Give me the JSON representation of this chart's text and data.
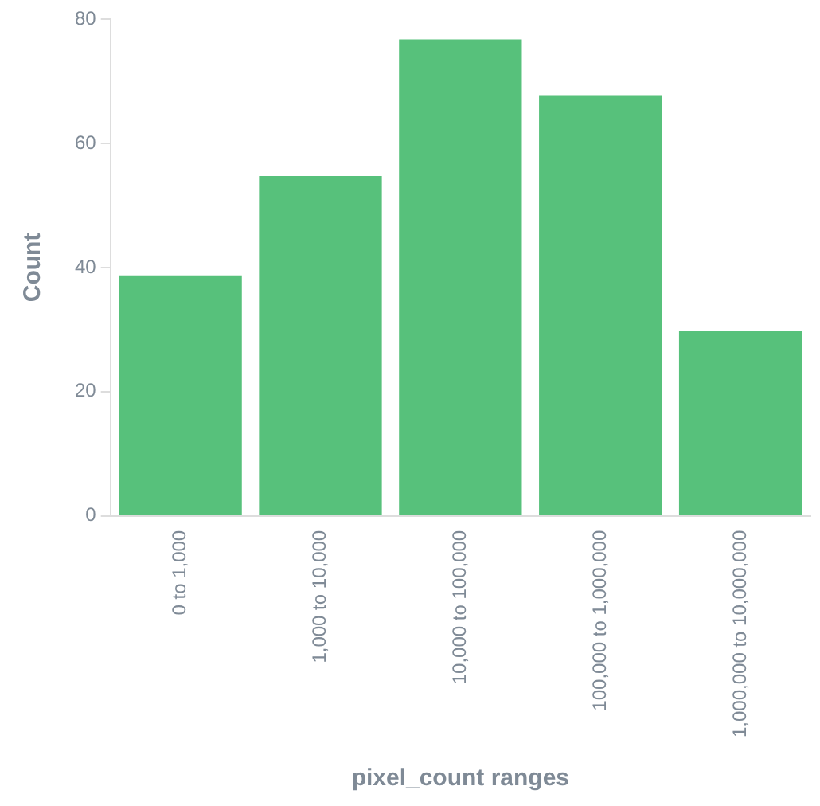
{
  "chart_data": {
    "type": "bar",
    "xlabel": "pixel_count ranges",
    "ylabel": "Count",
    "categories": [
      "0 to 1,000",
      "1,000 to 10,000",
      "10,000 to 100,000",
      "100,000 to 1,000,000",
      "1,000,000 to 10,000,000"
    ],
    "values": [
      39,
      55,
      77,
      68,
      30
    ],
    "color": "#57c17b",
    "ylim": [
      0,
      80
    ],
    "yticks": [
      0,
      20,
      40,
      60,
      80
    ],
    "grid": false,
    "legend": false
  }
}
